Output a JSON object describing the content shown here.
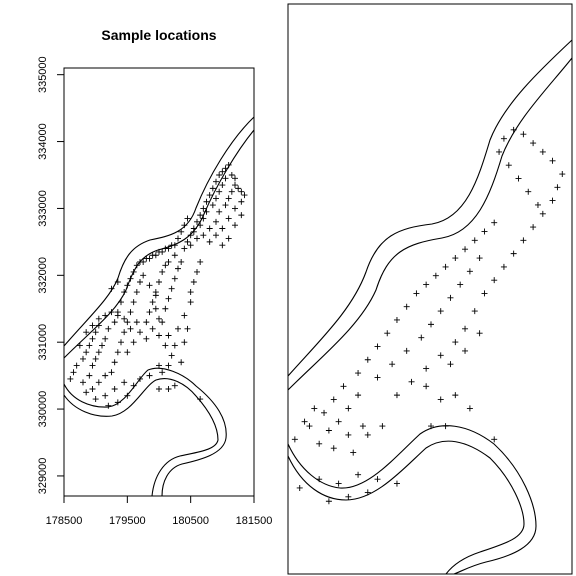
{
  "chart_data": [
    {
      "type": "scatter",
      "title": "Sample locations",
      "xlabel": "",
      "ylabel": "",
      "xlim": [
        178500,
        181500
      ],
      "ylim": [
        328700,
        335100
      ],
      "xticks": [
        "178500",
        "179500",
        "180500",
        "181500"
      ],
      "yticks": [
        "329000",
        "330000",
        "331000",
        "332000",
        "333000",
        "334000",
        "335000"
      ],
      "marker": "+",
      "points": [
        [
          178600,
          330450
        ],
        [
          178650,
          330550
        ],
        [
          178700,
          330650
        ],
        [
          178800,
          330750
        ],
        [
          178850,
          330850
        ],
        [
          178900,
          330950
        ],
        [
          178950,
          331050
        ],
        [
          179000,
          331150
        ],
        [
          179050,
          331250
        ],
        [
          178750,
          330950
        ],
        [
          178800,
          330400
        ],
        [
          178900,
          330500
        ],
        [
          178950,
          330650
        ],
        [
          179000,
          330750
        ],
        [
          179050,
          330850
        ],
        [
          179100,
          330950
        ],
        [
          179150,
          331050
        ],
        [
          179200,
          331200
        ],
        [
          178850,
          330250
        ],
        [
          178950,
          330300
        ],
        [
          179050,
          330400
        ],
        [
          179150,
          330500
        ],
        [
          179250,
          330550
        ],
        [
          179300,
          330700
        ],
        [
          179350,
          330850
        ],
        [
          179000,
          330150
        ],
        [
          179150,
          330200
        ],
        [
          179300,
          330300
        ],
        [
          179450,
          330400
        ],
        [
          179200,
          330050
        ],
        [
          179300,
          331300
        ],
        [
          179350,
          331450
        ],
        [
          179400,
          331600
        ],
        [
          179450,
          331750
        ],
        [
          179500,
          331850
        ],
        [
          179550,
          331950
        ],
        [
          179600,
          332050
        ],
        [
          179650,
          332150
        ],
        [
          179700,
          332200
        ],
        [
          179750,
          332200
        ],
        [
          179800,
          332250
        ],
        [
          179850,
          332250
        ],
        [
          179900,
          332300
        ],
        [
          179950,
          332300
        ],
        [
          180000,
          332350
        ],
        [
          180050,
          332350
        ],
        [
          180100,
          332400
        ],
        [
          180150,
          332400
        ],
        [
          180200,
          332450
        ],
        [
          180250,
          332450
        ],
        [
          180300,
          332550
        ],
        [
          180350,
          332650
        ],
        [
          180400,
          332750
        ],
        [
          180450,
          332850
        ],
        [
          179400,
          331000
        ],
        [
          179450,
          331150
        ],
        [
          179500,
          331300
        ],
        [
          179550,
          331450
        ],
        [
          179600,
          331600
        ],
        [
          179650,
          331750
        ],
        [
          179700,
          331900
        ],
        [
          179750,
          332000
        ],
        [
          179500,
          330850
        ],
        [
          179600,
          331000
        ],
        [
          179700,
          331150
        ],
        [
          179800,
          331300
        ],
        [
          179850,
          331450
        ],
        [
          179900,
          331600
        ],
        [
          179950,
          331750
        ],
        [
          180000,
          331900
        ],
        [
          180050,
          332050
        ],
        [
          180100,
          332150
        ],
        [
          179800,
          331050
        ],
        [
          179900,
          331200
        ],
        [
          180000,
          331350
        ],
        [
          180100,
          331500
        ],
        [
          180150,
          331650
        ],
        [
          180200,
          331800
        ],
        [
          180250,
          331950
        ],
        [
          180300,
          332100
        ],
        [
          180350,
          332200
        ],
        [
          180400,
          332400
        ],
        [
          180450,
          332500
        ],
        [
          180500,
          332600
        ],
        [
          180550,
          332700
        ],
        [
          180600,
          332800
        ],
        [
          180650,
          332900
        ],
        [
          180700,
          333000
        ],
        [
          180750,
          333100
        ],
        [
          180800,
          333200
        ],
        [
          180850,
          333300
        ],
        [
          180900,
          333400
        ],
        [
          180950,
          333500
        ],
        [
          181000,
          333550
        ],
        [
          181050,
          333600
        ],
        [
          181100,
          333650
        ],
        [
          180500,
          332450
        ],
        [
          180550,
          332650
        ],
        [
          180650,
          332750
        ],
        [
          180700,
          332850
        ],
        [
          180750,
          332950
        ],
        [
          180850,
          333050
        ],
        [
          180900,
          333150
        ],
        [
          180950,
          333250
        ],
        [
          181000,
          333350
        ],
        [
          181050,
          333450
        ],
        [
          181150,
          333500
        ],
        [
          181200,
          333450
        ],
        [
          180600,
          332550
        ],
        [
          180700,
          332600
        ],
        [
          180800,
          332700
        ],
        [
          180900,
          332800
        ],
        [
          180950,
          332950
        ],
        [
          181050,
          333050
        ],
        [
          181100,
          333150
        ],
        [
          181150,
          333250
        ],
        [
          181200,
          333350
        ],
        [
          181250,
          333300
        ],
        [
          181300,
          333250
        ],
        [
          181350,
          333200
        ],
        [
          180800,
          332500
        ],
        [
          180900,
          332600
        ],
        [
          181000,
          332700
        ],
        [
          181100,
          332850
        ],
        [
          181200,
          333000
        ],
        [
          181300,
          333100
        ],
        [
          181000,
          332450
        ],
        [
          181100,
          332550
        ],
        [
          181200,
          332750
        ],
        [
          181300,
          332900
        ],
        [
          179950,
          331500
        ],
        [
          180050,
          331300
        ],
        [
          180150,
          331100
        ],
        [
          180250,
          330950
        ],
        [
          180300,
          331200
        ],
        [
          180400,
          331400
        ],
        [
          180500,
          331600
        ],
        [
          180200,
          330800
        ],
        [
          180350,
          330700
        ],
        [
          180000,
          331100
        ],
        [
          180100,
          330950
        ],
        [
          180400,
          331000
        ],
        [
          180450,
          331200
        ],
        [
          180500,
          331750
        ],
        [
          180550,
          331900
        ],
        [
          180600,
          332050
        ],
        [
          180650,
          332200
        ],
        [
          179350,
          331400
        ],
        [
          179450,
          331350
        ],
        [
          179550,
          331200
        ],
        [
          179650,
          331300
        ],
        [
          179250,
          331450
        ],
        [
          179150,
          331400
        ],
        [
          179050,
          331350
        ],
        [
          178950,
          331250
        ],
        [
          178850,
          331150
        ],
        [
          179700,
          330450
        ],
        [
          179850,
          330500
        ],
        [
          179600,
          330350
        ],
        [
          180050,
          330550
        ],
        [
          180150,
          330650
        ],
        [
          180000,
          330650
        ],
        [
          180250,
          330350
        ],
        [
          179350,
          330100
        ],
        [
          179500,
          330200
        ],
        [
          180000,
          330300
        ],
        [
          180150,
          330300
        ],
        [
          180650,
          330150
        ],
        [
          179950,
          331700
        ],
        [
          179850,
          331850
        ],
        [
          180250,
          332300
        ],
        [
          180150,
          332200
        ],
        [
          179350,
          331900
        ],
        [
          179250,
          331800
        ]
      ]
    },
    {
      "type": "scatter",
      "title": "",
      "xlabel": "",
      "ylabel": "",
      "xlim": [
        178600,
        181500
      ],
      "ylim": [
        328700,
        335100
      ],
      "xticks": [],
      "yticks": [],
      "marker": "+",
      "points": [
        [
          178650,
          330200
        ],
        [
          178800,
          330350
        ],
        [
          178950,
          330500
        ],
        [
          179050,
          330650
        ],
        [
          179150,
          330800
        ],
        [
          178900,
          330150
        ],
        [
          179000,
          330300
        ],
        [
          179100,
          330400
        ],
        [
          179200,
          330550
        ],
        [
          179300,
          330700
        ],
        [
          178850,
          330550
        ],
        [
          178750,
          330400
        ],
        [
          179050,
          330100
        ],
        [
          179200,
          330250
        ],
        [
          179350,
          330350
        ],
        [
          179300,
          330950
        ],
        [
          179400,
          331100
        ],
        [
          179500,
          331250
        ],
        [
          179600,
          331400
        ],
        [
          179700,
          331550
        ],
        [
          179800,
          331700
        ],
        [
          179900,
          331850
        ],
        [
          180000,
          331950
        ],
        [
          180100,
          332050
        ],
        [
          180200,
          332150
        ],
        [
          180300,
          332250
        ],
        [
          180400,
          332350
        ],
        [
          180500,
          332450
        ],
        [
          180600,
          332550
        ],
        [
          180700,
          332650
        ],
        [
          179500,
          330900
        ],
        [
          179650,
          331050
        ],
        [
          179800,
          331200
        ],
        [
          179950,
          331350
        ],
        [
          180050,
          331500
        ],
        [
          180150,
          331650
        ],
        [
          180250,
          331800
        ],
        [
          180350,
          331950
        ],
        [
          180450,
          332100
        ],
        [
          180550,
          332250
        ],
        [
          179700,
          330700
        ],
        [
          179850,
          330850
        ],
        [
          180000,
          331000
        ],
        [
          180150,
          331150
        ],
        [
          180300,
          331300
        ],
        [
          180400,
          331450
        ],
        [
          180500,
          331650
        ],
        [
          180600,
          331850
        ],
        [
          180700,
          332000
        ],
        [
          180800,
          332150
        ],
        [
          180900,
          332300
        ],
        [
          181000,
          332450
        ],
        [
          181100,
          332600
        ],
        [
          181200,
          332750
        ],
        [
          181300,
          332900
        ],
        [
          181350,
          333050
        ],
        [
          181400,
          333200
        ],
        [
          181300,
          333350
        ],
        [
          181200,
          333450
        ],
        [
          181100,
          333550
        ],
        [
          181000,
          333650
        ],
        [
          180900,
          333700
        ],
        [
          180800,
          333600
        ],
        [
          180750,
          333450
        ],
        [
          180850,
          333300
        ],
        [
          180950,
          333150
        ],
        [
          181050,
          333000
        ],
        [
          181150,
          332850
        ],
        [
          180300,
          330700
        ],
        [
          180450,
          330550
        ],
        [
          180150,
          330650
        ],
        [
          180000,
          330800
        ],
        [
          180250,
          331050
        ],
        [
          180400,
          331200
        ],
        [
          180550,
          331400
        ],
        [
          179550,
          330350
        ],
        [
          179400,
          330250
        ],
        [
          179250,
          330050
        ],
        [
          180050,
          330350
        ],
        [
          180200,
          330350
        ],
        [
          180700,
          330200
        ],
        [
          178700,
          329650
        ],
        [
          178900,
          329750
        ],
        [
          179100,
          329700
        ],
        [
          179300,
          329800
        ],
        [
          179500,
          329750
        ],
        [
          179000,
          329500
        ],
        [
          179200,
          329550
        ],
        [
          179400,
          329600
        ],
        [
          179700,
          329700
        ]
      ]
    }
  ]
}
